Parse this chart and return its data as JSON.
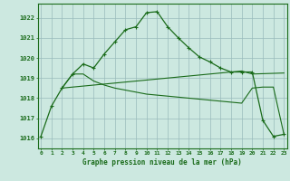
{
  "background_color": "#cce8e0",
  "plot_bg_color": "#cce8e0",
  "grid_color": "#99bbbb",
  "line_color": "#1a6b1a",
  "title": "Graphe pression niveau de la mer (hPa)",
  "xlim": [
    -0.3,
    23.3
  ],
  "ylim": [
    1015.5,
    1022.7
  ],
  "yticks": [
    1016,
    1017,
    1018,
    1019,
    1020,
    1021,
    1022
  ],
  "xticks": [
    0,
    1,
    2,
    3,
    4,
    5,
    6,
    7,
    8,
    9,
    10,
    11,
    12,
    13,
    14,
    15,
    16,
    17,
    18,
    19,
    20,
    21,
    22,
    23
  ],
  "series_main": {
    "x": [
      0,
      1,
      2,
      3,
      4,
      5,
      6,
      7,
      8,
      9,
      10,
      11,
      12,
      13,
      14,
      15,
      16,
      17,
      18,
      19,
      20,
      21,
      22,
      23
    ],
    "y": [
      1016.1,
      1017.6,
      1018.5,
      1019.2,
      1019.7,
      1019.5,
      1020.2,
      1020.8,
      1021.4,
      1021.55,
      1022.25,
      1022.3,
      1021.55,
      1021.0,
      1020.5,
      1020.05,
      1019.8,
      1019.5,
      1019.3,
      1019.3,
      1019.3,
      1016.9,
      1016.1,
      1016.2
    ]
  },
  "series_rising": {
    "x": [
      2,
      3,
      4,
      5,
      6,
      7,
      8,
      9,
      10,
      11,
      12,
      13,
      14,
      15,
      16,
      17,
      18,
      19,
      20,
      23
    ],
    "y": [
      1018.5,
      1018.55,
      1018.6,
      1018.65,
      1018.7,
      1018.75,
      1018.8,
      1018.85,
      1018.9,
      1018.95,
      1019.0,
      1019.05,
      1019.1,
      1019.15,
      1019.2,
      1019.25,
      1019.3,
      1019.35,
      1019.2,
      1019.25
    ]
  },
  "series_declining": {
    "x": [
      2,
      3,
      4,
      5,
      6,
      7,
      8,
      9,
      10,
      11,
      12,
      13,
      14,
      15,
      16,
      17,
      18,
      19,
      20,
      21,
      22,
      23
    ],
    "y": [
      1018.5,
      1019.2,
      1019.2,
      1018.85,
      1018.65,
      1018.5,
      1018.4,
      1018.3,
      1018.2,
      1018.15,
      1018.1,
      1018.05,
      1018.0,
      1017.95,
      1017.9,
      1017.85,
      1017.8,
      1017.75,
      1018.5,
      1018.55,
      1018.55,
      1016.2
    ]
  }
}
